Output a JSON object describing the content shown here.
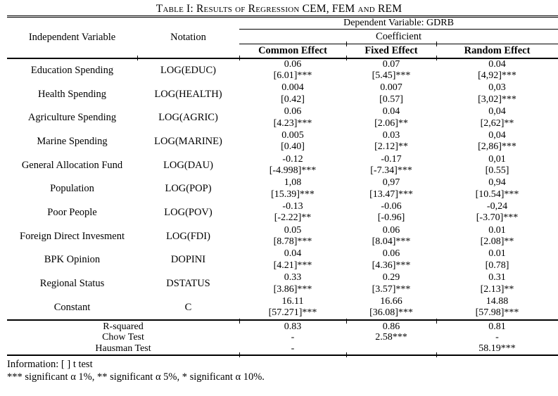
{
  "title": "Table I: Results of Regression CEM, FEM and REM",
  "header": {
    "independent_variable": "Independent Variable",
    "notation": "Notation",
    "dependent_variable": "Dependent Variable: GDRB",
    "coefficient": "Coefficient",
    "effects": {
      "common": "Common Effect",
      "fixed": "Fixed Effect",
      "random": "Random Effect"
    }
  },
  "rows": [
    {
      "variable": "Education Spending",
      "notation": "LOG(EDUC)",
      "cem": "0.06",
      "cem_t": "[6.01]***",
      "fem": "0.07",
      "fem_t": "[5.45]***",
      "rem": "0.04",
      "rem_t": "[4,92]***"
    },
    {
      "variable": "Health Spending",
      "notation": "LOG(HEALTH)",
      "cem": "0.004",
      "cem_t": "[0.42]",
      "fem": "0.007",
      "fem_t": "[0.57]",
      "rem": "0,03",
      "rem_t": "[3,02]***"
    },
    {
      "variable": "Agriculture Spending",
      "notation": "LOG(AGRIC)",
      "cem": "0.06",
      "cem_t": "[4.23]***",
      "fem": "0.04",
      "fem_t": "[2.06]**",
      "rem": "0,04",
      "rem_t": "[2,62]**"
    },
    {
      "variable": "Marine Spending",
      "notation": "LOG(MARINE)",
      "cem": "0.005",
      "cem_t": "[0.40]",
      "fem": "0.03",
      "fem_t": "[2.12]**",
      "rem": "0,04",
      "rem_t": "[2,86]***"
    },
    {
      "variable": "General Allocation Fund",
      "notation": "LOG(DAU)",
      "cem": "-0.12",
      "cem_t": "[-4.998]***",
      "fem": "-0.17",
      "fem_t": "[-7.34]***",
      "rem": "0,01",
      "rem_t": "[0.55]"
    },
    {
      "variable": "Population",
      "notation": "LOG(POP)",
      "cem": "1,08",
      "cem_t": "[15.39]***",
      "fem": "0,97",
      "fem_t": "[13.47]***",
      "rem": "0,94",
      "rem_t": "[10.54]***"
    },
    {
      "variable": "Poor People",
      "notation": "LOG(POV)",
      "cem": "-0.13",
      "cem_t": "[-2.22]**",
      "fem": "-0.06",
      "fem_t": "[-0.96]",
      "rem": "-0,24",
      "rem_t": "[-3.70]***"
    },
    {
      "variable": "Foreign Direct Invesment",
      "notation": "LOG(FDI)",
      "cem": "0.05",
      "cem_t": "[8.78]***",
      "fem": "0.06",
      "fem_t": "[8.04]***",
      "rem": "0.01",
      "rem_t": "[2.08]**"
    },
    {
      "variable": "BPK Opinion",
      "notation": "DOPINI",
      "cem": "0.04",
      "cem_t": "[4.21]***",
      "fem": "0.06",
      "fem_t": "[4.36]***",
      "rem": "0.01",
      "rem_t": "[0.78]"
    },
    {
      "variable": "Regional Status",
      "notation": "DSTATUS",
      "cem": "0.33",
      "cem_t": "[3.86]***",
      "fem": "0.29",
      "fem_t": "[3.57]***",
      "rem": "0.31",
      "rem_t": "[2.13]**"
    },
    {
      "variable": "Constant",
      "notation": "C",
      "cem": "16.11",
      "cem_t": "[57.271]***",
      "fem": "16.66",
      "fem_t": "[36.08]***",
      "rem": "14.88",
      "rem_t": "[57.98]***"
    }
  ],
  "summary": [
    {
      "label": "R-squared",
      "cem": "0.83",
      "fem": "0.86",
      "rem": "0.81"
    },
    {
      "label": "Chow Test",
      "cem": "-",
      "fem": "2.58***",
      "rem": "-"
    },
    {
      "label": "Hausman Test",
      "cem": "-",
      "fem": "",
      "rem": "58.19***"
    }
  ],
  "notes": {
    "line1": "Information: [ ] t test",
    "line2": "*** significant α 1%, ** significant α 5%, * significant α 10%."
  }
}
